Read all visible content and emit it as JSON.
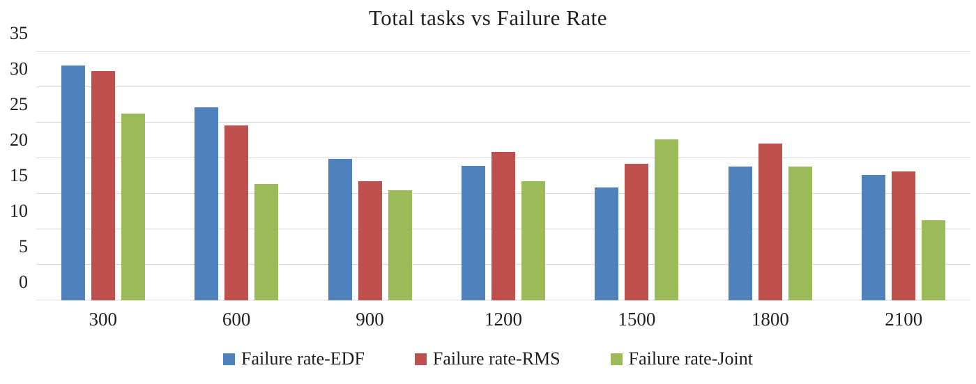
{
  "chart_data": {
    "type": "bar",
    "title": "Total tasks vs Failure Rate",
    "categories": [
      "300",
      "600",
      "900",
      "1200",
      "1500",
      "1800",
      "2100"
    ],
    "series": [
      {
        "name": "Failure rate-EDF",
        "color": "#4F81BD",
        "values": [
          33.0,
          27.2,
          19.9,
          18.9,
          15.9,
          18.8,
          17.6
        ]
      },
      {
        "name": "Failure rate-RMS",
        "color": "#C0504D",
        "values": [
          32.3,
          24.6,
          16.8,
          20.9,
          19.2,
          22.1,
          18.1
        ]
      },
      {
        "name": "Failure rate-Joint",
        "color": "#9BBB59",
        "values": [
          26.3,
          16.4,
          15.5,
          16.8,
          22.6,
          18.8,
          11.3
        ]
      }
    ],
    "xlabel": "",
    "ylabel": "",
    "ylim": [
      0,
      35
    ],
    "yticks": [
      0,
      5,
      10,
      15,
      20,
      25,
      30,
      35
    ],
    "grid": true,
    "gridline_color": "#D9D9D9",
    "text_color": "#1F1F1F",
    "legend_position": "bottom"
  }
}
